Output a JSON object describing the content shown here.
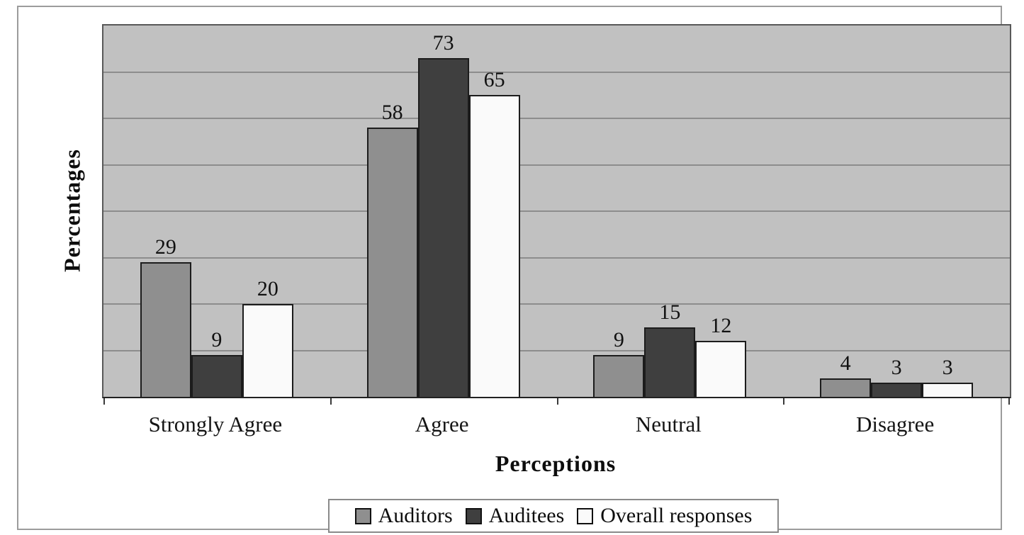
{
  "chart_data": {
    "type": "bar",
    "title": "",
    "categories": [
      "Strongly Agree",
      "Agree",
      "Neutral",
      "Disagree"
    ],
    "series": [
      {
        "name": "Auditors",
        "color": "#8f8f8f",
        "values": [
          29,
          58,
          9,
          4
        ]
      },
      {
        "name": "Auditees",
        "color": "#3f3f3f",
        "values": [
          9,
          73,
          15,
          3
        ]
      },
      {
        "name": "Overall responses",
        "color": "#fafafa",
        "values": [
          20,
          65,
          12,
          3
        ]
      }
    ],
    "xlabel": "Perceptions",
    "ylabel": "Percentages",
    "ylim": [
      0,
      80
    ],
    "gridline_step": 10,
    "grid": true,
    "y_tick_labels_visible": false,
    "value_labels": true,
    "legend_position": "bottom"
  },
  "colors": {
    "page_background": "#ffffff",
    "frame_border": "#9c9c9c",
    "plot_background": "#c1c1c1",
    "plot_border": "#585858",
    "axis_line": "#222222",
    "gridline": "#8d8d8d",
    "bar_border": "#1c1c1c",
    "text": "#111111"
  }
}
